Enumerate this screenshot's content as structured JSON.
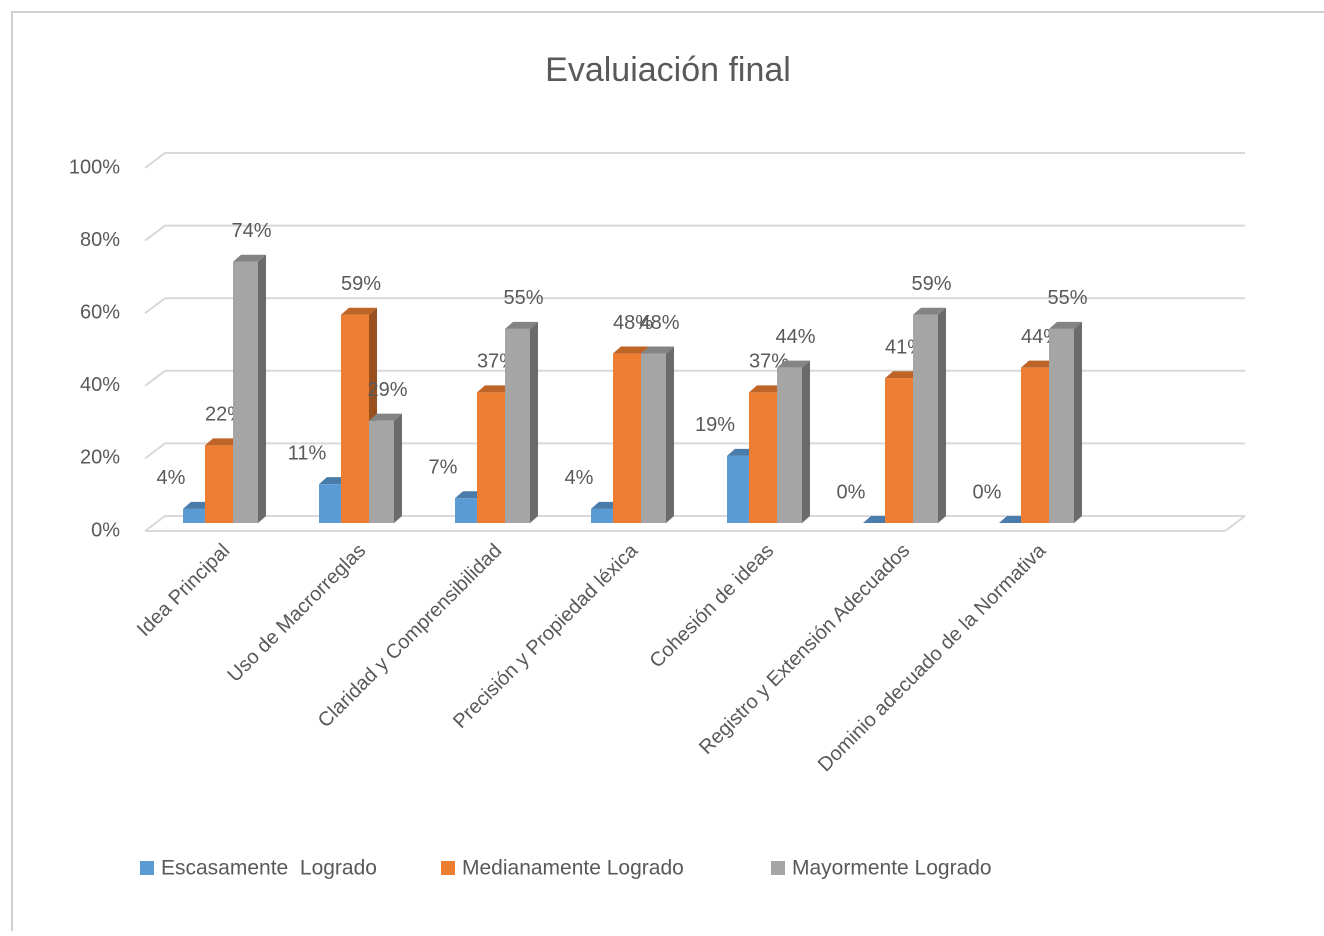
{
  "chart_data": {
    "type": "bar3d",
    "title": "Evaluiación final",
    "categories": [
      "Idea Principal",
      "Uso de Macrorreglas",
      "Claridad y Comprensibilidad",
      "Precisión y Propiedad léxica",
      "Cohesión de ideas",
      "Registro y Extensión Adecuados",
      "Dominio adecuado de la Normativa"
    ],
    "series": [
      {
        "name": "Escasamente  Logrado",
        "color": "#5b9bd5",
        "values": [
          4,
          11,
          7,
          4,
          19,
          0,
          0
        ],
        "value_labels": [
          "4%",
          "11%",
          "7%",
          "4%",
          "19%",
          "0%",
          "0%"
        ]
      },
      {
        "name": "Medianamente Logrado",
        "color": "#ed7d31",
        "values": [
          22,
          59,
          37,
          48,
          37,
          41,
          44
        ],
        "value_labels": [
          "22%",
          "59%",
          "37%",
          "48%",
          "37%",
          "41%",
          "44%"
        ]
      },
      {
        "name": "Mayormente Logrado",
        "color": "#a5a5a5",
        "values": [
          74,
          29,
          55,
          48,
          44,
          59,
          55
        ],
        "value_labels": [
          "74%",
          "29%",
          "55%",
          "48%",
          "44%",
          "59%",
          "55%"
        ]
      }
    ],
    "ylim": [
      0,
      100
    ],
    "yticks": [
      {
        "value": 0,
        "label": "0%"
      },
      {
        "value": 20,
        "label": "20%"
      },
      {
        "value": 40,
        "label": "40%"
      },
      {
        "value": 60,
        "label": "60%"
      },
      {
        "value": 80,
        "label": "80%"
      },
      {
        "value": 100,
        "label": "100%"
      }
    ],
    "grid": true,
    "legend": "bottom"
  }
}
